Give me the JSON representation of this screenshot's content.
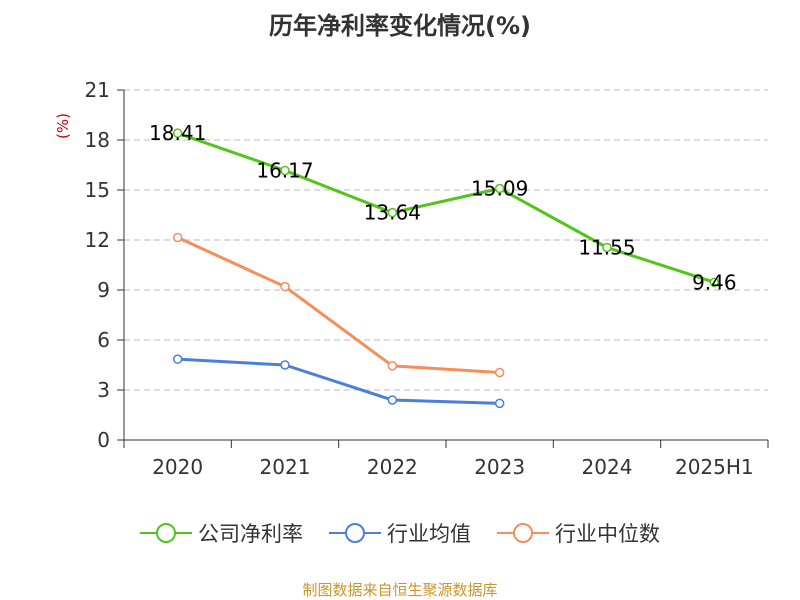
{
  "chart_data": {
    "type": "line",
    "title": "历年净利率变化情况(%)",
    "ylabel": "(%)",
    "xlabel": "",
    "categories": [
      "2020",
      "2021",
      "2022",
      "2023",
      "2024",
      "2025H1"
    ],
    "ylim": [
      0,
      21
    ],
    "yticks": [
      0,
      3,
      6,
      9,
      12,
      15,
      18,
      21
    ],
    "grid": true,
    "legend_position": "bottom",
    "series": [
      {
        "name": "公司净利率",
        "color": "#52c41a",
        "values": [
          18.41,
          16.17,
          13.64,
          15.09,
          11.55,
          9.46
        ],
        "labels": [
          "18.41",
          "16.17",
          "13.64",
          "15.09",
          "11.55",
          "9.46"
        ]
      },
      {
        "name": "行业均值",
        "color": "#4a7fdb",
        "values": [
          4.85,
          4.5,
          2.4,
          2.2,
          null,
          null
        ],
        "labels": []
      },
      {
        "name": "行业中位数",
        "color": "#f58e5a",
        "values": [
          12.15,
          9.2,
          4.45,
          4.05,
          null,
          null
        ],
        "labels": []
      }
    ]
  },
  "source": "制图数据来自恒生聚源数据库"
}
